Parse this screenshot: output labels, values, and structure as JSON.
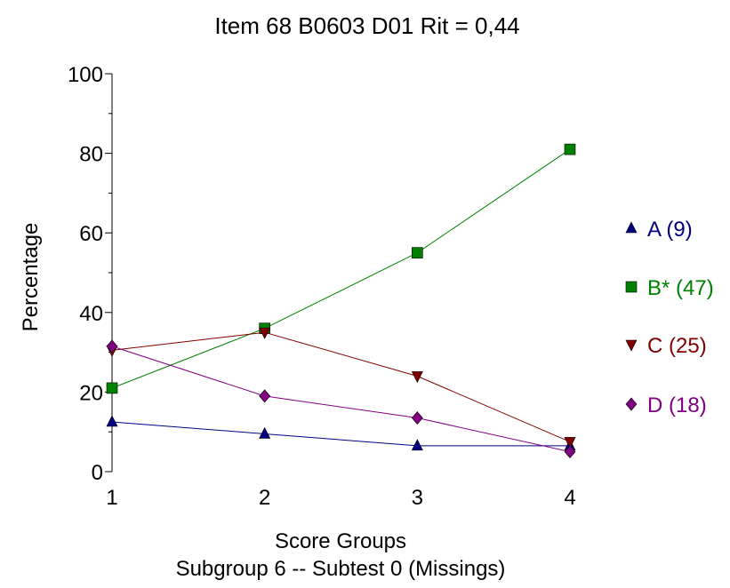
{
  "chart_data": {
    "type": "line",
    "title": "Item 68   B0603 D01      Rit = 0,44",
    "xlabel": "Score Groups",
    "subtitle": "Subgroup 6  --  Subtest 0 (Missings)",
    "ylabel": "Percentage",
    "x": [
      1,
      2,
      3,
      4
    ],
    "xticks": [
      "1",
      "2",
      "3",
      "4"
    ],
    "ylim": [
      0,
      100
    ],
    "yticks": [
      "0",
      "20",
      "40",
      "60",
      "80",
      "100"
    ],
    "grid": false,
    "legend_position": "right",
    "series": [
      {
        "name": "A (9)",
        "color": "#000080",
        "marker": "triangle-up",
        "values": [
          12.5,
          9.5,
          6.5,
          6.5
        ]
      },
      {
        "name": "B* (47)",
        "color": "#008000",
        "marker": "square",
        "values": [
          21,
          36,
          55,
          81
        ]
      },
      {
        "name": "C (25)",
        "color": "#800000",
        "marker": "triangle-down",
        "values": [
          30.5,
          35,
          24,
          7.5
        ]
      },
      {
        "name": "D (18)",
        "color": "#800080",
        "marker": "diamond",
        "values": [
          31.5,
          19,
          13.5,
          5
        ]
      }
    ]
  }
}
